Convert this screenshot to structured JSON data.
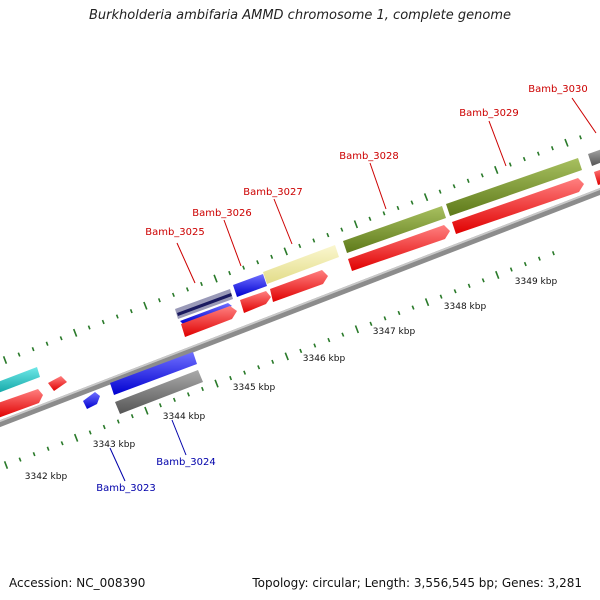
{
  "title": "Burkholderia ambifaria AMMD chromosome 1, complete genome",
  "footer": {
    "accession": "Accession: NC_008390",
    "stats": "Topology: circular; Length: 3,556,545 bp; Genes: 3,281"
  },
  "colors": {
    "backbone": "#8c8c8c",
    "tick": "#2a7a2a",
    "gene_label_top": "#cc0000",
    "gene_label_bottom": "#0000aa",
    "red_gene": "#ff1a1a",
    "blue_gene": "#1a1aff",
    "cyan_gene": "#22c8c8",
    "gray_gene": "#777777",
    "olive_gene": "#7a9a2a",
    "yellow_gene": "#f2eda0",
    "navy_gene": "#3a3aa0"
  },
  "kbp_labels": [
    "3342 kbp",
    "3343 kbp",
    "3344 kbp",
    "3345 kbp",
    "3346 kbp",
    "3347 kbp",
    "3348 kbp",
    "3349 kbp"
  ],
  "gene_labels_top": [
    "Bamb_3025",
    "Bamb_3026",
    "Bamb_3027",
    "Bamb_3028",
    "Bamb_3029",
    "Bamb_3030"
  ],
  "gene_labels_bottom": [
    "Bamb_3023",
    "Bamb_3024"
  ]
}
